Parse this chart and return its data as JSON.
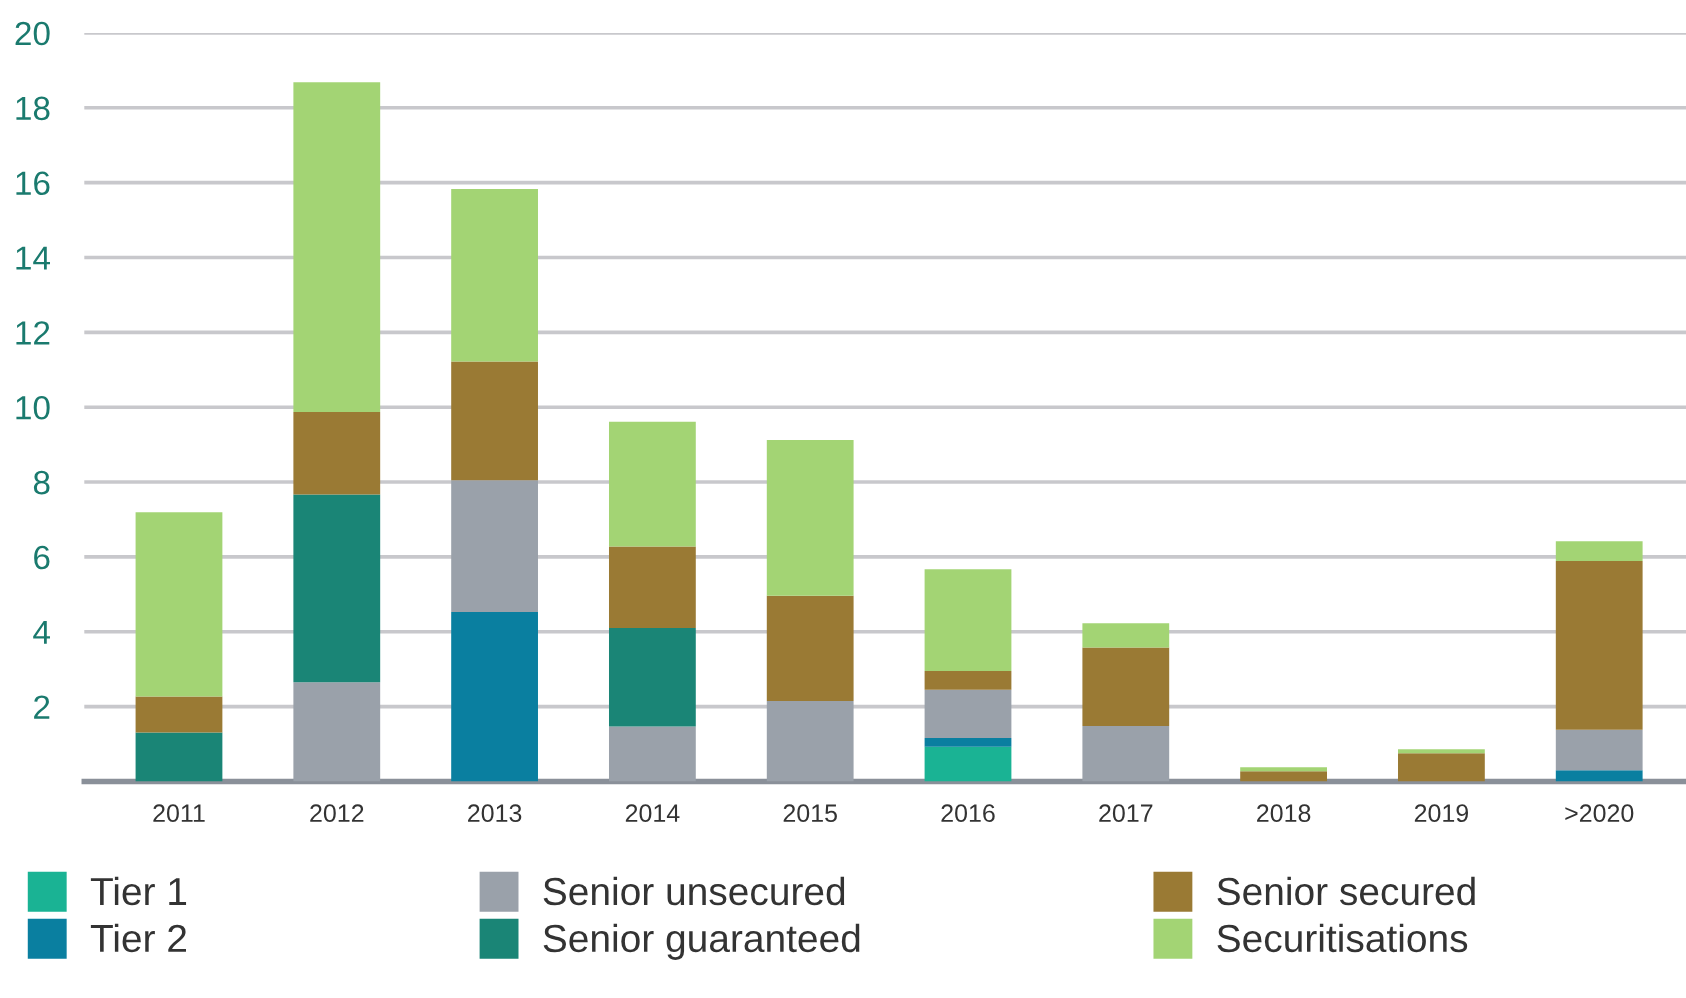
{
  "chart_data": {
    "type": "bar",
    "stacked": true,
    "categories": [
      "2011",
      "2012",
      "2013",
      "2014",
      "2015",
      "2016",
      "2017",
      "2018",
      "2019",
      ">2020"
    ],
    "series": [
      {
        "name": "Tier 1",
        "color": "#1ab394",
        "values": [
          0,
          0,
          0,
          0,
          0,
          0.93,
          0,
          0,
          0,
          0
        ]
      },
      {
        "name": "Tier 2",
        "color": "#0a7fa0",
        "values": [
          0,
          0,
          4.53,
          0,
          0,
          0.23,
          0,
          0,
          0,
          0.3
        ]
      },
      {
        "name": "Senior unsecured",
        "color": "#9aa1aa",
        "values": [
          0,
          2.65,
          3.52,
          1.47,
          2.15,
          1.29,
          1.48,
          0,
          0,
          1.08
        ]
      },
      {
        "name": "Senior guaranteed",
        "color": "#1a8576",
        "values": [
          1.31,
          5.02,
          0,
          2.63,
          0,
          0,
          0,
          0,
          0,
          0
        ]
      },
      {
        "name": "Senior secured",
        "color": "#9a7a34",
        "values": [
          0.96,
          2.2,
          3.17,
          2.18,
          2.81,
          0.5,
          2.1,
          0.27,
          0.75,
          4.51
        ]
      },
      {
        "name": "Securitisations",
        "color": "#a3d474",
        "values": [
          4.92,
          8.81,
          4.61,
          3.33,
          4.16,
          2.72,
          0.65,
          0.11,
          0.11,
          0.53
        ]
      }
    ],
    "ylim": [
      0,
      20
    ],
    "yticks": [
      2,
      4,
      6,
      8,
      10,
      12,
      14,
      16,
      18,
      20
    ],
    "grid": "y",
    "legend": "bottom"
  }
}
